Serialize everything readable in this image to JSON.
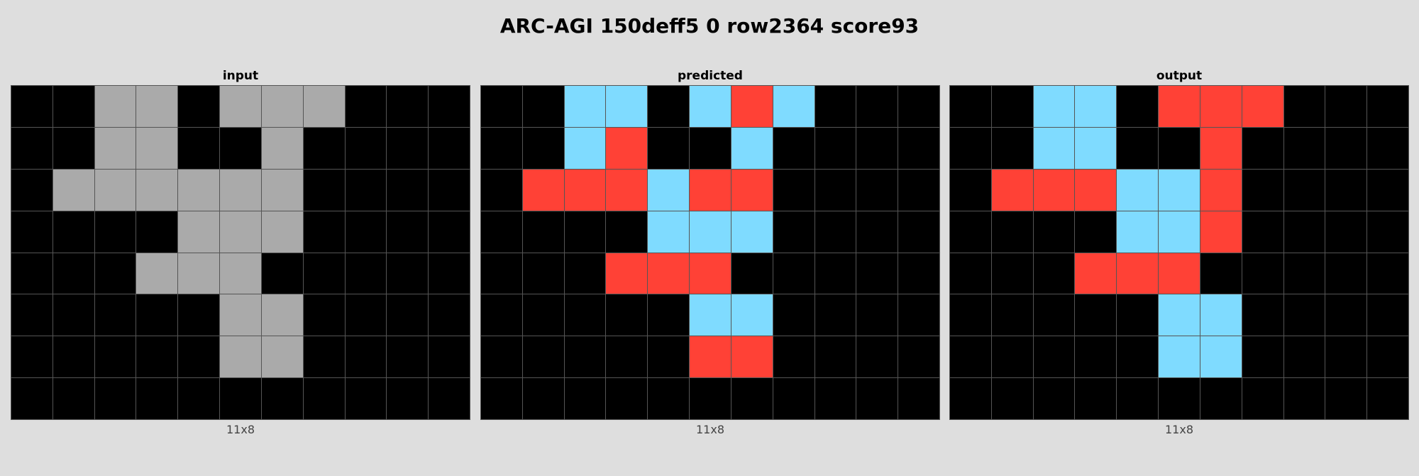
{
  "title": "ARC-AGI 150deff5 0 row2364 score93",
  "palette": {
    "0": "#000000",
    "2": "#ff4136",
    "5": "#aaaaaa",
    "8": "#7fdbff"
  },
  "panels": [
    {
      "label": "input",
      "caption": "11x8",
      "grid": [
        [
          0,
          0,
          5,
          5,
          0,
          5,
          5,
          5,
          0,
          0,
          0
        ],
        [
          0,
          0,
          5,
          5,
          0,
          0,
          5,
          0,
          0,
          0,
          0
        ],
        [
          0,
          5,
          5,
          5,
          5,
          5,
          5,
          0,
          0,
          0,
          0
        ],
        [
          0,
          0,
          0,
          0,
          5,
          5,
          5,
          0,
          0,
          0,
          0
        ],
        [
          0,
          0,
          0,
          5,
          5,
          5,
          0,
          0,
          0,
          0,
          0
        ],
        [
          0,
          0,
          0,
          0,
          0,
          5,
          5,
          0,
          0,
          0,
          0
        ],
        [
          0,
          0,
          0,
          0,
          0,
          5,
          5,
          0,
          0,
          0,
          0
        ],
        [
          0,
          0,
          0,
          0,
          0,
          0,
          0,
          0,
          0,
          0,
          0
        ]
      ]
    },
    {
      "label": "predicted",
      "caption": "11x8",
      "grid": [
        [
          0,
          0,
          8,
          8,
          0,
          8,
          2,
          8,
          0,
          0,
          0
        ],
        [
          0,
          0,
          8,
          2,
          0,
          0,
          8,
          0,
          0,
          0,
          0
        ],
        [
          0,
          2,
          2,
          2,
          8,
          2,
          2,
          0,
          0,
          0,
          0
        ],
        [
          0,
          0,
          0,
          0,
          8,
          8,
          8,
          0,
          0,
          0,
          0
        ],
        [
          0,
          0,
          0,
          2,
          2,
          2,
          0,
          0,
          0,
          0,
          0
        ],
        [
          0,
          0,
          0,
          0,
          0,
          8,
          8,
          0,
          0,
          0,
          0
        ],
        [
          0,
          0,
          0,
          0,
          0,
          2,
          2,
          0,
          0,
          0,
          0
        ],
        [
          0,
          0,
          0,
          0,
          0,
          0,
          0,
          0,
          0,
          0,
          0
        ]
      ]
    },
    {
      "label": "output",
      "caption": "11x8",
      "grid": [
        [
          0,
          0,
          8,
          8,
          0,
          2,
          2,
          2,
          0,
          0,
          0
        ],
        [
          0,
          0,
          8,
          8,
          0,
          0,
          2,
          0,
          0,
          0,
          0
        ],
        [
          0,
          2,
          2,
          2,
          8,
          8,
          2,
          0,
          0,
          0,
          0
        ],
        [
          0,
          0,
          0,
          0,
          8,
          8,
          2,
          0,
          0,
          0,
          0
        ],
        [
          0,
          0,
          0,
          2,
          2,
          2,
          0,
          0,
          0,
          0,
          0
        ],
        [
          0,
          0,
          0,
          0,
          0,
          8,
          8,
          0,
          0,
          0,
          0
        ],
        [
          0,
          0,
          0,
          0,
          0,
          8,
          8,
          0,
          0,
          0,
          0
        ],
        [
          0,
          0,
          0,
          0,
          0,
          0,
          0,
          0,
          0,
          0,
          0
        ]
      ]
    }
  ]
}
